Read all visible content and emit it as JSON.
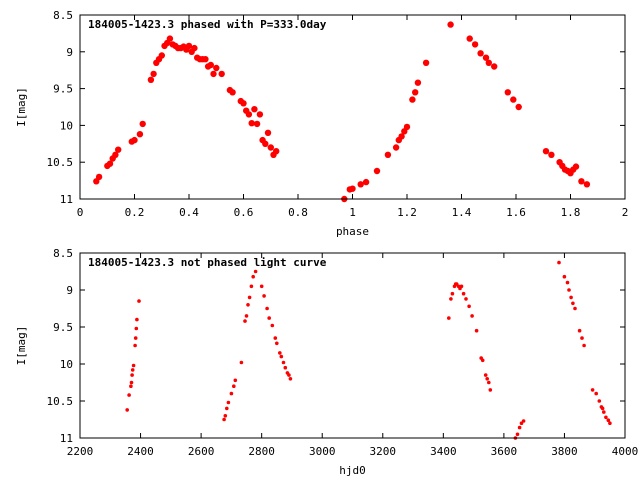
{
  "chart_data": [
    {
      "type": "scatter",
      "title": "184005-1423.3 phased with P=333.0day",
      "xlabel": "phase",
      "ylabel": "I[mag]",
      "xlim": [
        0,
        2
      ],
      "ylim": [
        11,
        8.5
      ],
      "y_inverted": true,
      "x_ticks": [
        "0",
        "0.2",
        "0.4",
        "0.6",
        "0.8",
        "1",
        "1.2",
        "1.4",
        "1.6",
        "1.8",
        "2"
      ],
      "x_tick_values": [
        0,
        0.2,
        0.4,
        0.6,
        0.8,
        1.0,
        1.2,
        1.4,
        1.6,
        1.8,
        2.0
      ],
      "y_ticks": [
        "8.5",
        "9",
        "9.5",
        "10",
        "10.5",
        "11"
      ],
      "y_tick_values": [
        8.5,
        9.0,
        9.5,
        10.0,
        10.5,
        11.0
      ],
      "grid": false,
      "legend": "none",
      "marker_color": "#ff0000",
      "marker": "filled-circle-large",
      "points": [
        [
          0.06,
          10.76
        ],
        [
          0.07,
          10.7
        ],
        [
          0.1,
          10.55
        ],
        [
          0.11,
          10.52
        ],
        [
          0.12,
          10.45
        ],
        [
          0.13,
          10.4
        ],
        [
          0.14,
          10.33
        ],
        [
          0.19,
          10.22
        ],
        [
          0.2,
          10.2
        ],
        [
          0.22,
          10.12
        ],
        [
          0.23,
          9.98
        ],
        [
          0.26,
          9.38
        ],
        [
          0.27,
          9.3
        ],
        [
          0.28,
          9.15
        ],
        [
          0.29,
          9.1
        ],
        [
          0.3,
          9.05
        ],
        [
          0.31,
          8.92
        ],
        [
          0.32,
          8.88
        ],
        [
          0.33,
          8.82
        ],
        [
          0.34,
          8.9
        ],
        [
          0.35,
          8.92
        ],
        [
          0.36,
          8.95
        ],
        [
          0.37,
          8.95
        ],
        [
          0.38,
          8.93
        ],
        [
          0.39,
          8.97
        ],
        [
          0.4,
          8.92
        ],
        [
          0.41,
          9.0
        ],
        [
          0.42,
          8.95
        ],
        [
          0.43,
          9.08
        ],
        [
          0.44,
          9.1
        ],
        [
          0.45,
          9.1
        ],
        [
          0.46,
          9.1
        ],
        [
          0.47,
          9.2
        ],
        [
          0.48,
          9.18
        ],
        [
          0.49,
          9.3
        ],
        [
          0.5,
          9.22
        ],
        [
          0.52,
          9.3
        ],
        [
          0.55,
          9.52
        ],
        [
          0.56,
          9.55
        ],
        [
          0.59,
          9.67
        ],
        [
          0.6,
          9.7
        ],
        [
          0.61,
          9.8
        ],
        [
          0.62,
          9.85
        ],
        [
          0.63,
          9.97
        ],
        [
          0.64,
          9.78
        ],
        [
          0.65,
          9.98
        ],
        [
          0.66,
          9.85
        ],
        [
          0.67,
          10.2
        ],
        [
          0.68,
          10.25
        ],
        [
          0.69,
          10.1
        ],
        [
          0.7,
          10.3
        ],
        [
          0.71,
          10.4
        ],
        [
          0.72,
          10.35
        ],
        [
          0.97,
          11.0
        ],
        [
          0.99,
          10.87
        ],
        [
          1.0,
          10.86
        ],
        [
          1.03,
          10.8
        ],
        [
          1.05,
          10.77
        ],
        [
          1.09,
          10.62
        ],
        [
          1.13,
          10.4
        ],
        [
          1.16,
          10.3
        ],
        [
          1.17,
          10.2
        ],
        [
          1.18,
          10.15
        ],
        [
          1.19,
          10.08
        ],
        [
          1.2,
          10.02
        ],
        [
          1.22,
          9.65
        ],
        [
          1.23,
          9.55
        ],
        [
          1.24,
          9.42
        ],
        [
          1.27,
          9.15
        ],
        [
          1.36,
          8.63
        ],
        [
          1.43,
          8.82
        ],
        [
          1.45,
          8.9
        ],
        [
          1.47,
          9.02
        ],
        [
          1.49,
          9.08
        ],
        [
          1.5,
          9.15
        ],
        [
          1.52,
          9.2
        ],
        [
          1.57,
          9.55
        ],
        [
          1.59,
          9.65
        ],
        [
          1.61,
          9.75
        ],
        [
          1.71,
          10.35
        ],
        [
          1.73,
          10.4
        ],
        [
          1.76,
          10.5
        ],
        [
          1.77,
          10.55
        ],
        [
          1.78,
          10.6
        ],
        [
          1.79,
          10.62
        ],
        [
          1.8,
          10.65
        ],
        [
          1.81,
          10.6
        ],
        [
          1.82,
          10.56
        ],
        [
          1.84,
          10.76
        ],
        [
          1.86,
          10.8
        ]
      ]
    },
    {
      "type": "scatter",
      "title": "184005-1423.3 not phased light curve",
      "xlabel": "hjd0",
      "ylabel": "I[mag]",
      "xlim": [
        2200,
        4000
      ],
      "ylim": [
        11,
        8.5
      ],
      "y_inverted": true,
      "x_ticks": [
        "2200",
        "2400",
        "2600",
        "2800",
        "3000",
        "3200",
        "3400",
        "3600",
        "3800",
        "4000"
      ],
      "x_tick_values": [
        2200,
        2400,
        2600,
        2800,
        3000,
        3200,
        3400,
        3600,
        3800,
        4000
      ],
      "y_ticks": [
        "8.5",
        "9",
        "9.5",
        "10",
        "10.5",
        "11"
      ],
      "y_tick_values": [
        8.5,
        9.0,
        9.5,
        10.0,
        10.5,
        11.0
      ],
      "grid": false,
      "legend": "none",
      "marker_color": "#ff0000",
      "marker": "filled-circle-small",
      "points": [
        [
          2356,
          10.62
        ],
        [
          2362,
          10.42
        ],
        [
          2368,
          10.3
        ],
        [
          2370,
          10.25
        ],
        [
          2372,
          10.15
        ],
        [
          2374,
          10.08
        ],
        [
          2377,
          10.02
        ],
        [
          2382,
          9.75
        ],
        [
          2384,
          9.65
        ],
        [
          2386,
          9.52
        ],
        [
          2388,
          9.4
        ],
        [
          2395,
          9.15
        ],
        [
          2676,
          10.75
        ],
        [
          2680,
          10.7
        ],
        [
          2685,
          10.6
        ],
        [
          2690,
          10.52
        ],
        [
          2700,
          10.4
        ],
        [
          2708,
          10.3
        ],
        [
          2713,
          10.22
        ],
        [
          2733,
          9.98
        ],
        [
          2745,
          9.42
        ],
        [
          2750,
          9.35
        ],
        [
          2755,
          9.2
        ],
        [
          2760,
          9.1
        ],
        [
          2766,
          8.95
        ],
        [
          2772,
          8.82
        ],
        [
          2780,
          8.75
        ],
        [
          2800,
          8.95
        ],
        [
          2808,
          9.08
        ],
        [
          2818,
          9.25
        ],
        [
          2825,
          9.38
        ],
        [
          2835,
          9.48
        ],
        [
          2845,
          9.65
        ],
        [
          2850,
          9.72
        ],
        [
          2860,
          9.85
        ],
        [
          2865,
          9.9
        ],
        [
          2872,
          9.98
        ],
        [
          2878,
          10.05
        ],
        [
          2885,
          10.12
        ],
        [
          2890,
          10.15
        ],
        [
          2895,
          10.2
        ],
        [
          3418,
          9.38
        ],
        [
          3425,
          9.12
        ],
        [
          3430,
          9.05
        ],
        [
          3437,
          8.95
        ],
        [
          3441,
          8.92
        ],
        [
          3444,
          8.92
        ],
        [
          3450,
          8.95
        ],
        [
          3455,
          8.98
        ],
        [
          3460,
          8.95
        ],
        [
          3467,
          9.05
        ],
        [
          3475,
          9.12
        ],
        [
          3485,
          9.22
        ],
        [
          3495,
          9.35
        ],
        [
          3510,
          9.55
        ],
        [
          3525,
          9.92
        ],
        [
          3530,
          9.95
        ],
        [
          3540,
          10.15
        ],
        [
          3545,
          10.2
        ],
        [
          3550,
          10.25
        ],
        [
          3555,
          10.35
        ],
        [
          3638,
          11.0
        ],
        [
          3645,
          10.95
        ],
        [
          3652,
          10.86
        ],
        [
          3658,
          10.8
        ],
        [
          3665,
          10.77
        ],
        [
          3782,
          8.63
        ],
        [
          3800,
          8.82
        ],
        [
          3810,
          8.9
        ],
        [
          3815,
          9.0
        ],
        [
          3822,
          9.1
        ],
        [
          3828,
          9.18
        ],
        [
          3835,
          9.25
        ],
        [
          3850,
          9.55
        ],
        [
          3858,
          9.65
        ],
        [
          3865,
          9.75
        ],
        [
          3893,
          10.35
        ],
        [
          3905,
          10.4
        ],
        [
          3915,
          10.5
        ],
        [
          3922,
          10.58
        ],
        [
          3926,
          10.6
        ],
        [
          3930,
          10.65
        ],
        [
          3937,
          10.72
        ],
        [
          3945,
          10.76
        ],
        [
          3950,
          10.8
        ]
      ]
    }
  ]
}
